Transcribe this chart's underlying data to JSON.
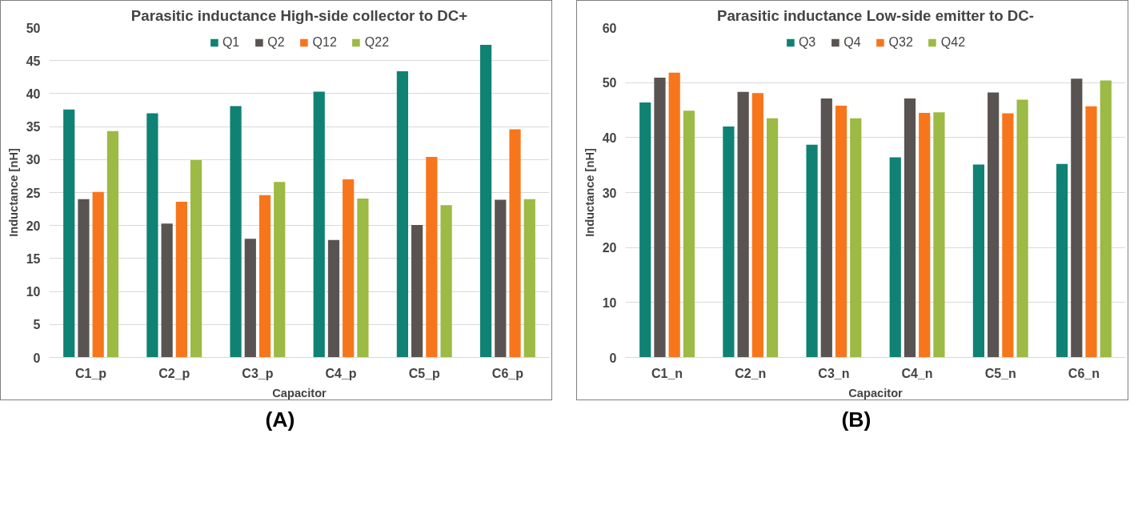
{
  "chart_data": [
    {
      "type": "bar",
      "title": "Parasitic inductance High-side collector to DC+",
      "xlabel": "Capacitor",
      "ylabel": "Inductance [nH]",
      "categories": [
        "C1_p",
        "C2_p",
        "C3_p",
        "C4_p",
        "C5_p",
        "C6_p"
      ],
      "series": [
        {
          "name": "Q1",
          "color": "#0f8274",
          "values": [
            37.6,
            37.0,
            38.1,
            40.3,
            43.4,
            47.4
          ]
        },
        {
          "name": "Q2",
          "color": "#595452",
          "values": [
            24.0,
            20.3,
            18.0,
            17.8,
            20.1,
            23.9
          ]
        },
        {
          "name": "Q12",
          "color": "#f7761b",
          "values": [
            25.1,
            23.6,
            24.6,
            27.0,
            30.4,
            34.6
          ]
        },
        {
          "name": "Q22",
          "color": "#9cba44",
          "values": [
            34.3,
            29.9,
            26.6,
            24.1,
            23.1,
            24.0
          ]
        }
      ],
      "ylim": [
        0,
        50
      ],
      "yticks": [
        0,
        5,
        10,
        15,
        20,
        25,
        30,
        35,
        40,
        45,
        50
      ],
      "grid": "y",
      "legend": "top",
      "annotations": [
        "(A)"
      ]
    },
    {
      "type": "bar",
      "title": "Parasitic inductance Low-side emitter to DC-",
      "xlabel": "Capacitor",
      "ylabel": "Inductance [nH]",
      "categories": [
        "C1_n",
        "C2_n",
        "C3_n",
        "C4_n",
        "C5_n",
        "C6_n"
      ],
      "series": [
        {
          "name": "Q3",
          "color": "#0f8274",
          "values": [
            46.4,
            42.0,
            38.7,
            36.4,
            35.1,
            35.2
          ]
        },
        {
          "name": "Q4",
          "color": "#595452",
          "values": [
            50.9,
            48.3,
            47.1,
            47.1,
            48.2,
            50.7
          ]
        },
        {
          "name": "Q32",
          "color": "#f7761b",
          "values": [
            51.8,
            48.1,
            45.8,
            44.5,
            44.4,
            45.7
          ]
        },
        {
          "name": "Q42",
          "color": "#9cba44",
          "values": [
            44.9,
            43.5,
            43.5,
            44.6,
            46.9,
            50.4
          ]
        }
      ],
      "ylim": [
        0,
        60
      ],
      "yticks": [
        0,
        10,
        20,
        30,
        40,
        50,
        60
      ],
      "grid": "y",
      "legend": "top",
      "annotations": [
        "(B)"
      ]
    }
  ]
}
